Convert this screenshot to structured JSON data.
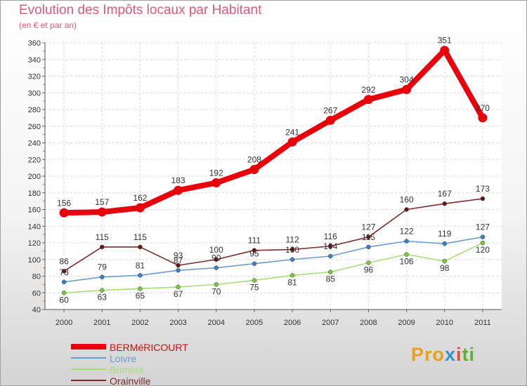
{
  "chart_data": {
    "type": "line",
    "title": "Evolution des Impôts locaux par Habitant",
    "subtitle": "(en € et par an)",
    "categories": [
      "2000",
      "2001",
      "2002",
      "2003",
      "2004",
      "2005",
      "2006",
      "2007",
      "2008",
      "2009",
      "2010",
      "2011"
    ],
    "ylim": [
      40,
      360
    ],
    "yticks": [
      40,
      60,
      80,
      100,
      120,
      140,
      160,
      180,
      200,
      220,
      240,
      260,
      280,
      300,
      320,
      340,
      360
    ],
    "grid": true,
    "series": [
      {
        "name": "BERMéRICOURT",
        "color": "#e8000a",
        "values": [
          156,
          157,
          162,
          183,
          192,
          208,
          241,
          267,
          292,
          304,
          351,
          270
        ]
      },
      {
        "name": "Loivre",
        "color": "#6c9ccc",
        "marker": "#3a7fc0",
        "values": [
          73,
          79,
          81,
          87,
          90,
          95,
          100,
          104,
          115,
          122,
          119,
          127
        ]
      },
      {
        "name": "Brimont",
        "color": "#a8dc7c",
        "marker": "#78c840",
        "values": [
          60,
          63,
          65,
          67,
          70,
          75,
          81,
          85,
          96,
          106,
          98,
          120
        ]
      },
      {
        "name": "Orainville",
        "color": "#7a2a2a",
        "marker": "#6a1414",
        "values": [
          86,
          115,
          115,
          93,
          100,
          111,
          112,
          116,
          127,
          160,
          167,
          173
        ]
      }
    ],
    "data_labels": {
      "BERMéRICOURT": [
        "156",
        "157",
        "162",
        "183",
        "192",
        "208",
        "241",
        "267",
        "292",
        "304",
        "351",
        "270"
      ],
      "Loivre": [
        "73",
        "79",
        "81",
        "87",
        "90",
        "95",
        "100",
        "104",
        "115",
        "122",
        "119",
        "127"
      ],
      "Brimont": [
        "60",
        "63",
        "65",
        "67",
        "70",
        "75",
        "81",
        "85",
        "96",
        "106",
        "98",
        "120"
      ],
      "Orainville": [
        "86",
        "115",
        "115",
        "93",
        "100",
        "111",
        "112",
        "116",
        "127",
        "160",
        "167",
        "173"
      ]
    },
    "legend_position": "bottom-left"
  },
  "logo": {
    "p1": "Pro",
    "p2": "x",
    "p3": "i",
    "p4": "ti"
  }
}
